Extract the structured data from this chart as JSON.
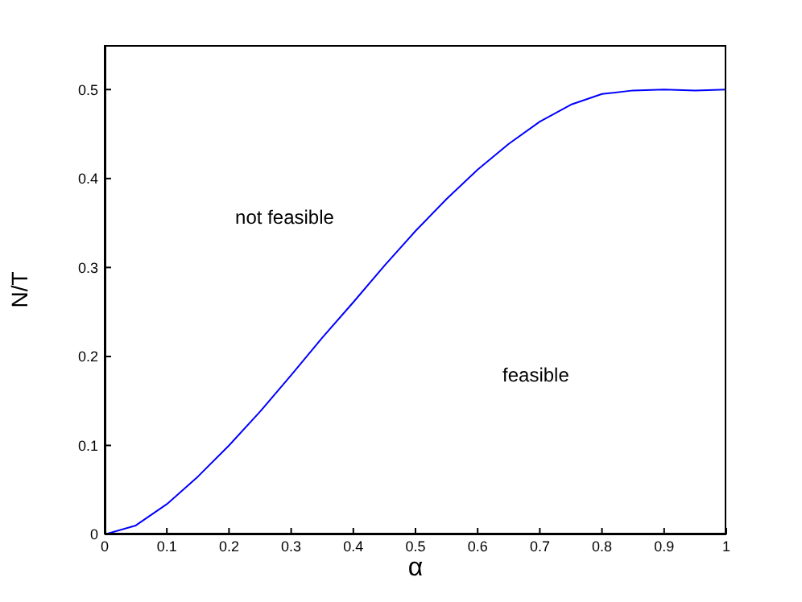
{
  "chart_data": {
    "type": "line",
    "xlabel": "α",
    "ylabel": "N/T",
    "x": [
      0,
      0.05,
      0.1,
      0.15,
      0.2,
      0.25,
      0.3,
      0.35,
      0.4,
      0.45,
      0.5,
      0.55,
      0.6,
      0.65,
      0.7,
      0.75,
      0.8,
      0.85,
      0.9,
      0.95,
      1
    ],
    "series": [
      {
        "color": "#0000ff",
        "values": [
          0,
          0.01,
          0.034,
          0.065,
          0.1,
          0.138,
          0.179,
          0.221,
          0.261,
          0.302,
          0.341,
          0.377,
          0.41,
          0.439,
          0.464,
          0.483,
          0.495,
          0.499,
          0.5,
          0.499,
          0.5
        ]
      }
    ],
    "xlim": [
      0,
      1
    ],
    "xticks": [
      0,
      0.1,
      0.2,
      0.3,
      0.4,
      0.5,
      0.6,
      0.7,
      0.8,
      0.9,
      1
    ],
    "ylim": [
      0,
      0.55
    ],
    "yticks": [
      0,
      0.1,
      0.2,
      0.3,
      0.4,
      0.5
    ],
    "annotations": [
      "not feasible",
      "feasible"
    ],
    "grid": false,
    "marker": "none",
    "line_style": "solid"
  }
}
